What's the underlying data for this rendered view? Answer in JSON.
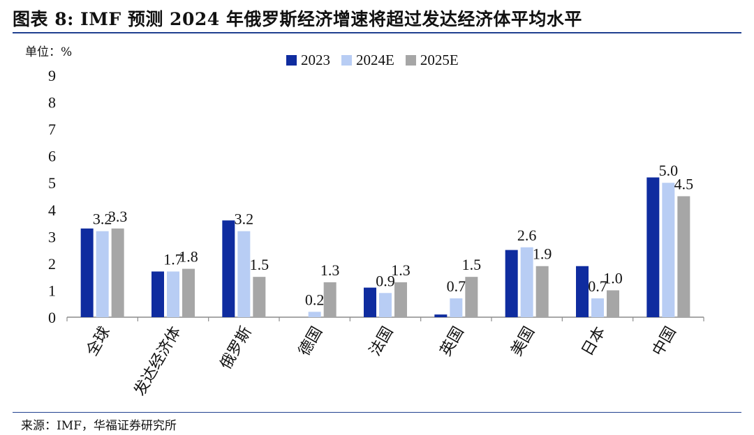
{
  "title": "图表 8:  IMF 预测 2024 年俄罗斯经济增速将超过发达经济体平均水平",
  "unit_label": "单位：%",
  "source": "来源：IMF，华福证券研究所",
  "colors": {
    "s2023": "#0f2c9f",
    "s2024": "#b8cdf4",
    "s2025": "#a6a6a6",
    "rule": "#1f3f8f"
  },
  "chart_data": {
    "type": "bar",
    "categories": [
      "全球",
      "发达经济体",
      "俄罗斯",
      "德国",
      "法国",
      "英国",
      "美国",
      "日本",
      "中国"
    ],
    "series": [
      {
        "name": "2023",
        "values": [
          3.3,
          1.7,
          3.6,
          0.0,
          1.1,
          0.1,
          2.5,
          1.9,
          5.2
        ]
      },
      {
        "name": "2024E",
        "values": [
          3.2,
          1.7,
          3.2,
          0.2,
          0.9,
          0.7,
          2.6,
          0.7,
          5.0
        ]
      },
      {
        "name": "2025E",
        "values": [
          3.3,
          1.8,
          1.5,
          1.3,
          1.3,
          1.5,
          1.9,
          1.0,
          4.5
        ]
      }
    ],
    "labeled_series": [
      "2024E",
      "2025E"
    ],
    "ylim": [
      0,
      9
    ],
    "yticks": [
      "0",
      "1",
      "2",
      "3",
      "4",
      "5",
      "6",
      "7",
      "8",
      "9"
    ],
    "grid": false,
    "legend_position": "top-center"
  }
}
